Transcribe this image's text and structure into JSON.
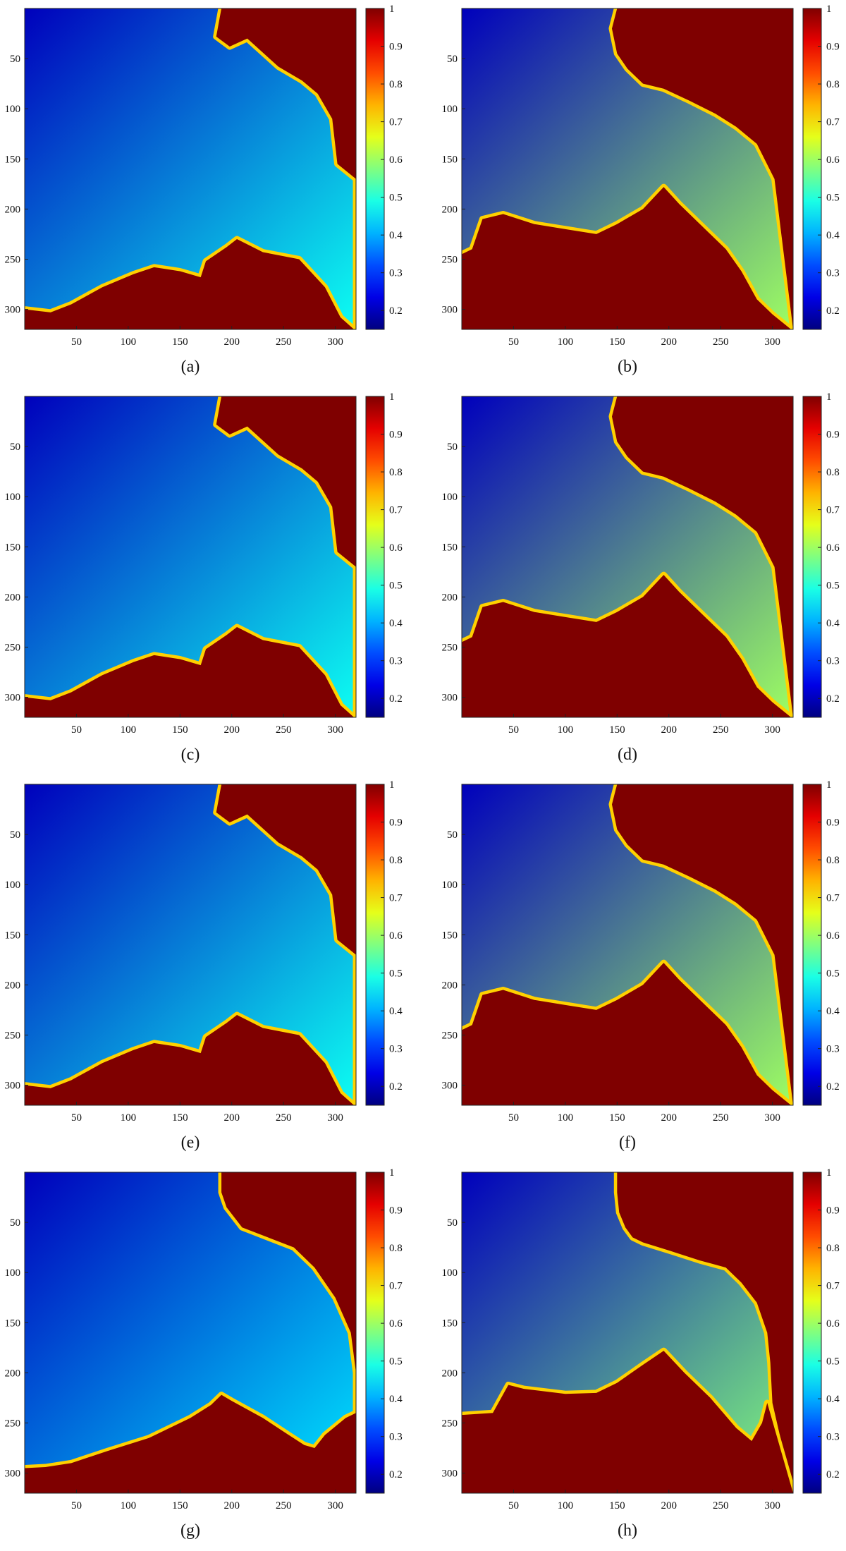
{
  "figure": {
    "captions": [
      "(a)",
      "(b)",
      "(c)",
      "(d)",
      "(e)",
      "(f)",
      "(g)",
      "(h)"
    ]
  },
  "colors": {
    "background": "#ffffff",
    "solid_region": "#7f0000",
    "axis": "#222222"
  },
  "chart_data": [
    {
      "type": "heatmap",
      "caption": "(a)",
      "colormap": "jet",
      "xticks": [
        50,
        100,
        150,
        200,
        250,
        300
      ],
      "yticks": [
        50,
        100,
        150,
        200,
        250,
        300
      ],
      "xlim": [
        1,
        320
      ],
      "ylim": [
        1,
        320
      ],
      "y_axis_direction": "reversed",
      "colorbar": {
        "range": [
          0.15,
          1
        ],
        "ticks": [
          0.2,
          0.3,
          0.4,
          0.5,
          0.6,
          0.7,
          0.8,
          0.9,
          1
        ],
        "tick_labels": [
          "0.2",
          "0.3",
          "0.4",
          "0.5",
          "0.6",
          "0.7",
          "0.8",
          "0.9",
          "1"
        ]
      },
      "field_range": [
        0.2,
        0.48
      ],
      "front_value": 0.72,
      "region_value": 1,
      "boundary_top_x": [
        [
          190,
          185,
          198,
          215,
          245,
          268,
          283,
          297,
          302,
          320,
          320
        ]
      ],
      "boundary_top_y": [
        [
          0,
          28,
          38,
          30,
          58,
          72,
          85,
          110,
          155,
          170,
          320
        ]
      ],
      "boundary_bottom_x": [
        [
          0,
          25,
          45,
          75,
          105,
          125,
          150,
          170,
          175,
          195,
          205,
          230,
          265,
          290,
          305,
          318
        ]
      ],
      "boundary_bottom_y": [
        [
          300,
          303,
          295,
          278,
          265,
          258,
          262,
          268,
          252,
          238,
          230,
          243,
          250,
          278,
          308,
          320
        ]
      ]
    },
    {
      "type": "heatmap",
      "caption": "(b)",
      "colormap": "jet",
      "xticks": [
        50,
        100,
        150,
        200,
        250,
        300
      ],
      "yticks": [
        50,
        100,
        150,
        200,
        250,
        300
      ],
      "xlim": [
        1,
        320
      ],
      "ylim": [
        1,
        320
      ],
      "y_axis_direction": "reversed",
      "colorbar": {
        "range": [
          0.15,
          1
        ],
        "ticks": [
          0.2,
          0.3,
          0.4,
          0.5,
          0.6,
          0.7,
          0.8,
          0.9,
          1
        ],
        "tick_labels": [
          "0.2",
          "0.3",
          "0.4",
          "0.5",
          "0.6",
          "0.7",
          "0.8",
          "0.9",
          "1"
        ]
      },
      "field_range": [
        0.2,
        0.6
      ],
      "front_value": 0.72,
      "region_value": 1,
      "boundary_top_x": [
        [
          150,
          145,
          150,
          160,
          175,
          195,
          220,
          245,
          265,
          285,
          302,
          320
        ]
      ],
      "boundary_top_y": [
        [
          0,
          20,
          45,
          60,
          75,
          80,
          92,
          105,
          118,
          135,
          170,
          320
        ]
      ],
      "boundary_bottom_x": [
        [
          0,
          10,
          20,
          40,
          70,
          100,
          130,
          150,
          175,
          195,
          210,
          230,
          255,
          270,
          285,
          300,
          318
        ]
      ],
      "boundary_bottom_y": [
        [
          245,
          240,
          210,
          205,
          215,
          220,
          225,
          215,
          200,
          178,
          195,
          215,
          240,
          262,
          290,
          305,
          320
        ]
      ]
    },
    {
      "type": "heatmap",
      "caption": "(c)",
      "colormap": "jet",
      "xticks": [
        50,
        100,
        150,
        200,
        250,
        300
      ],
      "yticks": [
        50,
        100,
        150,
        200,
        250,
        300
      ],
      "xlim": [
        1,
        320
      ],
      "ylim": [
        1,
        320
      ],
      "y_axis_direction": "reversed",
      "colorbar": {
        "range": [
          0.15,
          1
        ],
        "ticks": [
          0.2,
          0.3,
          0.4,
          0.5,
          0.6,
          0.7,
          0.8,
          0.9,
          1
        ],
        "tick_labels": [
          "0.2",
          "0.3",
          "0.4",
          "0.5",
          "0.6",
          "0.7",
          "0.8",
          "0.9",
          "1"
        ]
      },
      "field_range": [
        0.2,
        0.48
      ],
      "front_value": 0.72,
      "region_value": 1,
      "boundary_top_x": [
        [
          190,
          185,
          198,
          215,
          245,
          268,
          283,
          297,
          302,
          320,
          320
        ]
      ],
      "boundary_top_y": [
        [
          0,
          28,
          38,
          30,
          58,
          72,
          85,
          110,
          155,
          170,
          320
        ]
      ],
      "boundary_bottom_x": [
        [
          0,
          25,
          45,
          75,
          105,
          125,
          150,
          170,
          175,
          195,
          205,
          230,
          265,
          290,
          305,
          318
        ]
      ],
      "boundary_bottom_y": [
        [
          300,
          303,
          295,
          278,
          265,
          258,
          262,
          268,
          252,
          238,
          230,
          243,
          250,
          278,
          308,
          320
        ]
      ]
    },
    {
      "type": "heatmap",
      "caption": "(d)",
      "colormap": "jet",
      "xticks": [
        50,
        100,
        150,
        200,
        250,
        300
      ],
      "yticks": [
        50,
        100,
        150,
        200,
        250,
        300
      ],
      "xlim": [
        1,
        320
      ],
      "ylim": [
        1,
        320
      ],
      "y_axis_direction": "reversed",
      "colorbar": {
        "range": [
          0.15,
          1
        ],
        "ticks": [
          0.2,
          0.3,
          0.4,
          0.5,
          0.6,
          0.7,
          0.8,
          0.9,
          1
        ],
        "tick_labels": [
          "0.2",
          "0.3",
          "0.4",
          "0.5",
          "0.6",
          "0.7",
          "0.8",
          "0.9",
          "1"
        ]
      },
      "field_range": [
        0.2,
        0.6
      ],
      "front_value": 0.72,
      "region_value": 1,
      "boundary_top_x": [
        [
          150,
          145,
          150,
          160,
          175,
          195,
          220,
          245,
          265,
          285,
          302,
          320
        ]
      ],
      "boundary_top_y": [
        [
          0,
          20,
          45,
          60,
          75,
          80,
          92,
          105,
          118,
          135,
          170,
          320
        ]
      ],
      "boundary_bottom_x": [
        [
          0,
          10,
          20,
          40,
          70,
          100,
          130,
          150,
          175,
          195,
          210,
          230,
          255,
          270,
          285,
          300,
          318
        ]
      ],
      "boundary_bottom_y": [
        [
          245,
          240,
          210,
          205,
          215,
          220,
          225,
          215,
          200,
          178,
          195,
          215,
          240,
          262,
          290,
          305,
          320
        ]
      ]
    },
    {
      "type": "heatmap",
      "caption": "(e)",
      "colormap": "jet",
      "xticks": [
        50,
        100,
        150,
        200,
        250,
        300
      ],
      "yticks": [
        50,
        100,
        150,
        200,
        250,
        300
      ],
      "xlim": [
        1,
        320
      ],
      "ylim": [
        1,
        320
      ],
      "y_axis_direction": "reversed",
      "colorbar": {
        "range": [
          0.15,
          1
        ],
        "ticks": [
          0.2,
          0.3,
          0.4,
          0.5,
          0.6,
          0.7,
          0.8,
          0.9,
          1
        ],
        "tick_labels": [
          "0.2",
          "0.3",
          "0.4",
          "0.5",
          "0.6",
          "0.7",
          "0.8",
          "0.9",
          "1"
        ]
      },
      "field_range": [
        0.2,
        0.48
      ],
      "front_value": 0.72,
      "region_value": 1,
      "boundary_top_x": [
        [
          190,
          185,
          198,
          215,
          245,
          268,
          283,
          297,
          302,
          320,
          320
        ]
      ],
      "boundary_top_y": [
        [
          0,
          28,
          38,
          30,
          58,
          72,
          85,
          110,
          155,
          170,
          320
        ]
      ],
      "boundary_bottom_x": [
        [
          0,
          25,
          45,
          75,
          105,
          125,
          150,
          170,
          175,
          195,
          205,
          230,
          265,
          290,
          305,
          318
        ]
      ],
      "boundary_bottom_y": [
        [
          300,
          303,
          295,
          278,
          265,
          258,
          262,
          268,
          252,
          238,
          230,
          243,
          250,
          278,
          308,
          320
        ]
      ]
    },
    {
      "type": "heatmap",
      "caption": "(f)",
      "colormap": "jet",
      "xticks": [
        50,
        100,
        150,
        200,
        250,
        300
      ],
      "yticks": [
        50,
        100,
        150,
        200,
        250,
        300
      ],
      "xlim": [
        1,
        320
      ],
      "ylim": [
        1,
        320
      ],
      "y_axis_direction": "reversed",
      "colorbar": {
        "range": [
          0.15,
          1
        ],
        "ticks": [
          0.2,
          0.3,
          0.4,
          0.5,
          0.6,
          0.7,
          0.8,
          0.9,
          1
        ],
        "tick_labels": [
          "0.2",
          "0.3",
          "0.4",
          "0.5",
          "0.6",
          "0.7",
          "0.8",
          "0.9",
          "1"
        ]
      },
      "field_range": [
        0.2,
        0.6
      ],
      "front_value": 0.72,
      "region_value": 1,
      "boundary_top_x": [
        [
          150,
          145,
          150,
          160,
          175,
          195,
          220,
          245,
          265,
          285,
          302,
          320
        ]
      ],
      "boundary_top_y": [
        [
          0,
          20,
          45,
          60,
          75,
          80,
          92,
          105,
          118,
          135,
          170,
          320
        ]
      ],
      "boundary_bottom_x": [
        [
          0,
          10,
          20,
          40,
          70,
          100,
          130,
          150,
          175,
          195,
          210,
          230,
          255,
          270,
          285,
          300,
          318
        ]
      ],
      "boundary_bottom_y": [
        [
          245,
          240,
          210,
          205,
          215,
          220,
          225,
          215,
          200,
          178,
          195,
          215,
          240,
          262,
          290,
          305,
          320
        ]
      ]
    },
    {
      "type": "heatmap",
      "caption": "(g)",
      "colormap": "jet",
      "xticks": [
        50,
        100,
        150,
        200,
        250,
        300
      ],
      "yticks": [
        50,
        100,
        150,
        200,
        250,
        300
      ],
      "xlim": [
        1,
        320
      ],
      "ylim": [
        1,
        320
      ],
      "y_axis_direction": "reversed",
      "colorbar": {
        "range": [
          0.15,
          1
        ],
        "ticks": [
          0.2,
          0.3,
          0.4,
          0.5,
          0.6,
          0.7,
          0.8,
          0.9,
          1
        ],
        "tick_labels": [
          "0.2",
          "0.3",
          "0.4",
          "0.5",
          "0.6",
          "0.7",
          "0.8",
          "0.9",
          "1"
        ]
      },
      "field_range": [
        0.2,
        0.45
      ],
      "front_value": 0.72,
      "region_value": 1,
      "boundary_top_x": [
        [
          190,
          190,
          195,
          210,
          235,
          260,
          280,
          300,
          315,
          320,
          320
        ]
      ],
      "boundary_top_y": [
        [
          0,
          20,
          35,
          55,
          65,
          75,
          95,
          125,
          160,
          200,
          320
        ]
      ],
      "boundary_bottom_x": [
        [
          0,
          20,
          45,
          80,
          120,
          160,
          180,
          190,
          200,
          230,
          255,
          270,
          280,
          290,
          310,
          320
        ]
      ],
      "boundary_bottom_y": [
        [
          295,
          294,
          290,
          278,
          265,
          245,
          232,
          222,
          228,
          245,
          262,
          272,
          275,
          262,
          245,
          240
        ]
      ]
    },
    {
      "type": "heatmap",
      "caption": "(h)",
      "colormap": "jet",
      "xticks": [
        50,
        100,
        150,
        200,
        250,
        300
      ],
      "yticks": [
        50,
        100,
        150,
        200,
        250,
        300
      ],
      "xlim": [
        1,
        320
      ],
      "ylim": [
        1,
        320
      ],
      "y_axis_direction": "reversed",
      "colorbar": {
        "range": [
          0.15,
          1
        ],
        "ticks": [
          0.2,
          0.3,
          0.4,
          0.5,
          0.6,
          0.7,
          0.8,
          0.9,
          1
        ],
        "tick_labels": [
          "0.2",
          "0.3",
          "0.4",
          "0.5",
          "0.6",
          "0.7",
          "0.8",
          "0.9",
          "1"
        ]
      },
      "field_range": [
        0.2,
        0.58
      ],
      "front_value": 0.72,
      "region_value": 1,
      "boundary_top_x": [
        [
          150,
          150,
          152,
          158,
          165,
          175,
          200,
          230,
          255,
          270,
          285,
          295,
          298,
          300,
          320
        ]
      ],
      "boundary_top_y": [
        [
          0,
          20,
          40,
          55,
          65,
          70,
          78,
          88,
          95,
          110,
          130,
          160,
          190,
          230,
          320
        ]
      ],
      "boundary_bottom_x": [
        [
          0,
          30,
          45,
          60,
          100,
          130,
          150,
          175,
          195,
          215,
          240,
          265,
          280,
          290,
          295,
          320
        ]
      ],
      "boundary_bottom_y": [
        [
          242,
          240,
          212,
          216,
          221,
          220,
          210,
          192,
          178,
          200,
          225,
          255,
          268,
          250,
          230,
          320
        ]
      ]
    }
  ]
}
